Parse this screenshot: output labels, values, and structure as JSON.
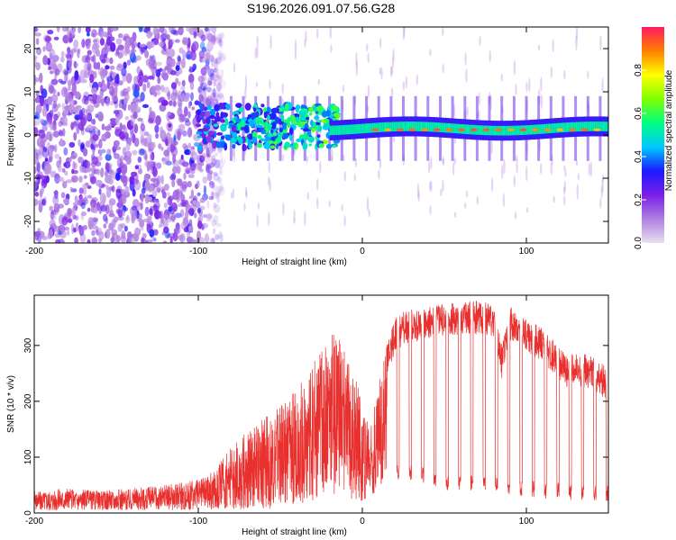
{
  "title": "S196.2026.091.07.56.G28",
  "colors": {
    "line": "#e8302e",
    "axis": "#000000",
    "colorbar_stops": [
      "#e8e0f0",
      "#b080e0",
      "#7a1fe8",
      "#1a1aff",
      "#00c8ff",
      "#00ff80",
      "#80ff00",
      "#ffff00",
      "#ff8000",
      "#ff1a60"
    ]
  },
  "chart_data": [
    {
      "type": "heatmap",
      "title": "",
      "xlabel": "Height of straight line (km)",
      "ylabel": "Frequency (Hz)",
      "xlim": [
        -200,
        150
      ],
      "ylim": [
        -25,
        25
      ],
      "xticks": [
        -200,
        -100,
        0,
        100
      ],
      "xtick_labels": [
        "-200",
        "-100",
        "0",
        "100"
      ],
      "yticks": [
        -20,
        -10,
        0,
        10,
        20
      ],
      "ytick_labels": [
        "-20",
        "-10",
        "0",
        "10",
        "20"
      ],
      "description_regions": [
        {
          "x_range": [
            -200,
            -90
          ],
          "pattern": "scattered noise across all frequencies",
          "amplitude_range": [
            0.0,
            0.3
          ]
        },
        {
          "x_range": [
            -90,
            -20
          ],
          "pattern": "noisy band near 2 Hz",
          "amplitude_range": [
            0.2,
            0.5
          ]
        },
        {
          "x_range": [
            -20,
            150
          ],
          "pattern": "narrow carrier band near 1-2 Hz",
          "amplitude_range": [
            0.5,
            1.0
          ]
        }
      ],
      "colorbar": {
        "label": "Normalized spectral amplitude",
        "range": [
          0.0,
          1.0
        ],
        "ticks": [
          0.0,
          0.2,
          0.4,
          0.6,
          0.8
        ],
        "tick_labels": [
          "0.0",
          "0.2",
          "0.4",
          "0.6",
          "0.8"
        ]
      }
    },
    {
      "type": "line",
      "title": "",
      "xlabel": "Height of straight line (km)",
      "ylabel": "SNR (10 * v/v)",
      "xlim": [
        -200,
        150
      ],
      "ylim": [
        0,
        390
      ],
      "xticks": [
        -200,
        -100,
        0,
        100
      ],
      "xtick_labels": [
        "-200",
        "-100",
        "0",
        "100"
      ],
      "yticks": [
        0,
        100,
        200,
        300
      ],
      "ytick_labels": [
        "0",
        "100",
        "200",
        "300"
      ],
      "series": [
        {
          "name": "SNR",
          "x": [
            -200,
            -180,
            -160,
            -140,
            -120,
            -100,
            -90,
            -80,
            -70,
            -60,
            -50,
            -40,
            -30,
            -20,
            -15,
            -10,
            -5,
            0,
            5,
            10,
            15,
            20,
            25,
            30,
            40,
            50,
            60,
            70,
            80,
            85,
            90,
            95,
            100,
            110,
            120,
            125,
            130,
            140,
            150
          ],
          "envelope_high": [
            40,
            45,
            40,
            45,
            50,
            60,
            80,
            120,
            150,
            170,
            190,
            230,
            270,
            320,
            330,
            280,
            250,
            200,
            170,
            240,
            300,
            350,
            360,
            365,
            370,
            375,
            378,
            380,
            375,
            300,
            370,
            360,
            350,
            330,
            300,
            280,
            290,
            280,
            260
          ],
          "envelope_low": [
            5,
            5,
            5,
            5,
            5,
            5,
            5,
            5,
            5,
            5,
            10,
            15,
            20,
            30,
            30,
            30,
            20,
            20,
            25,
            40,
            55,
            60,
            60,
            55,
            50,
            40,
            40,
            40,
            40,
            40,
            30,
            30,
            30,
            25,
            25,
            20,
            20,
            20,
            20
          ],
          "dip_spacing_km": 7.5
        }
      ]
    }
  ]
}
